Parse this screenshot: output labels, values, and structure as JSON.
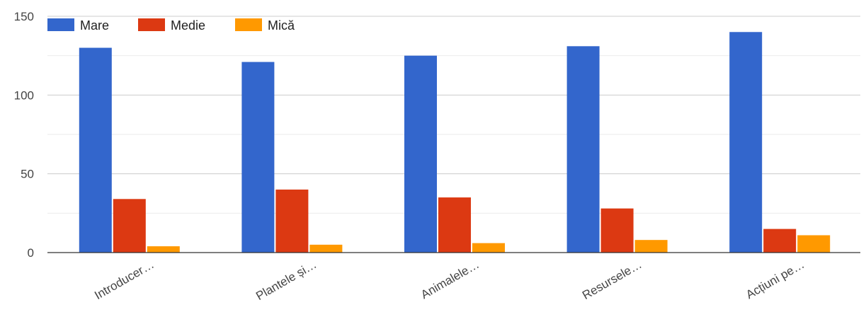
{
  "chart_data": {
    "type": "bar",
    "categories": [
      "Introducer…",
      "Plantele și…",
      "Animalele…",
      "Resursele…",
      "Acțiuni pe…"
    ],
    "series": [
      {
        "name": "Mare",
        "values": [
          130,
          121,
          125,
          131,
          140
        ],
        "color": "#3366cc"
      },
      {
        "name": "Medie",
        "values": [
          34,
          40,
          35,
          28,
          15
        ],
        "color": "#dc3912"
      },
      {
        "name": "Mică",
        "values": [
          4,
          5,
          6,
          8,
          11
        ],
        "color": "#ff9900"
      }
    ],
    "ylim": [
      0,
      150
    ],
    "yticks": [
      0,
      50,
      100,
      150
    ],
    "grid": true,
    "legend_position": "top-left"
  }
}
